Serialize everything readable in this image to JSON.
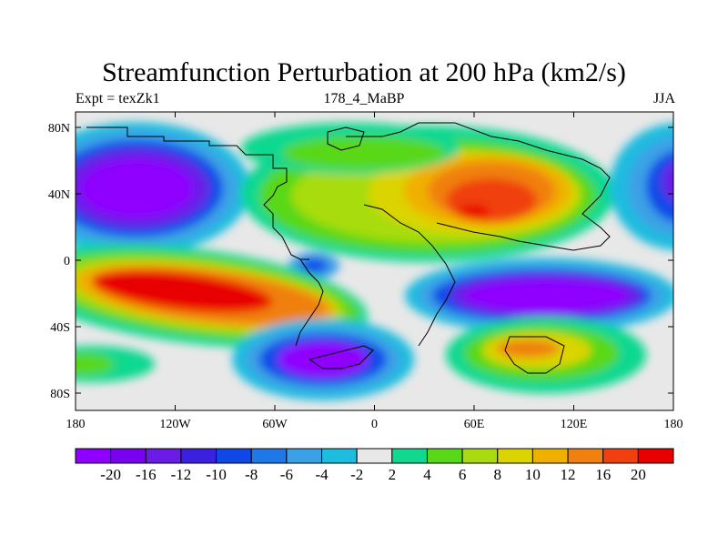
{
  "title": "Streamfunction Perturbation at 200 hPa (km2/s)",
  "subtitle_left": "Expt = texZk1",
  "subtitle_center": "178_4_MaBP",
  "subtitle_right": "JJA",
  "lat_ticks": [
    "80N",
    "40N",
    "0",
    "40S",
    "80S"
  ],
  "lon_ticks": [
    "180",
    "120W",
    "60W",
    "0",
    "60E",
    "120E",
    "180"
  ],
  "colorbar": {
    "colors": [
      "#8f00ff",
      "#7a00f0",
      "#6a1ce6",
      "#3c20e0",
      "#1048e8",
      "#1e78e8",
      "#3ca0e6",
      "#1ebcdf",
      "#e8e8e8",
      "#10d890",
      "#58d818",
      "#a8dc10",
      "#dcd400",
      "#f0b000",
      "#f08010",
      "#f04010",
      "#e80000"
    ],
    "labels": [
      "-20",
      "-16",
      "-12",
      "-10",
      "-8",
      "-6",
      "-4",
      "-2",
      "2",
      "4",
      "6",
      "8",
      "10",
      "12",
      "16",
      "20"
    ]
  },
  "map": {
    "lon_range": [
      -180,
      180
    ],
    "lat_range": [
      -90,
      90
    ],
    "background_color": "#e8e8e8",
    "coastline_color": "#000000"
  }
}
